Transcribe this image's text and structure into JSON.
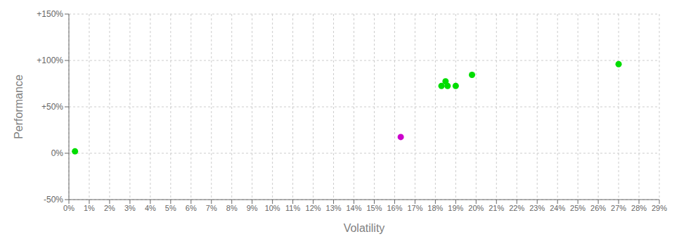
{
  "chart_data": {
    "type": "scatter",
    "x_label": "Volatility",
    "y_label": "Performance",
    "xlim": [
      0,
      0.29
    ],
    "ylim": [
      -0.5,
      1.5
    ],
    "xticks": [
      {
        "value": 0,
        "label": "0%"
      },
      {
        "value": 0.01,
        "label": "1%"
      },
      {
        "value": 0.02,
        "label": "2%"
      },
      {
        "value": 0.03,
        "label": "3%"
      },
      {
        "value": 0.04,
        "label": "4%"
      },
      {
        "value": 0.05,
        "label": "5%"
      },
      {
        "value": 0.06,
        "label": "6%"
      },
      {
        "value": 0.07,
        "label": "7%"
      },
      {
        "value": 0.08,
        "label": "8%"
      },
      {
        "value": 0.09,
        "label": "9%"
      },
      {
        "value": 0.1,
        "label": "10%"
      },
      {
        "value": 0.11,
        "label": "11%"
      },
      {
        "value": 0.12,
        "label": "12%"
      },
      {
        "value": 0.13,
        "label": "13%"
      },
      {
        "value": 0.14,
        "label": "14%"
      },
      {
        "value": 0.15,
        "label": "15%"
      },
      {
        "value": 0.16,
        "label": "16%"
      },
      {
        "value": 0.17,
        "label": "17%"
      },
      {
        "value": 0.18,
        "label": "18%"
      },
      {
        "value": 0.19,
        "label": "19%"
      },
      {
        "value": 0.2,
        "label": "20%"
      },
      {
        "value": 0.21,
        "label": "21%"
      },
      {
        "value": 0.22,
        "label": "22%"
      },
      {
        "value": 0.23,
        "label": "23%"
      },
      {
        "value": 0.24,
        "label": "24%"
      },
      {
        "value": 0.25,
        "label": "25%"
      },
      {
        "value": 0.26,
        "label": "26%"
      },
      {
        "value": 0.27,
        "label": "27%"
      },
      {
        "value": 0.28,
        "label": "28%"
      },
      {
        "value": 0.29,
        "label": "29%"
      }
    ],
    "yticks": [
      {
        "value": -0.5,
        "label": "-50%"
      },
      {
        "value": 0,
        "label": "0%"
      },
      {
        "value": 0.5,
        "label": "+50%"
      },
      {
        "value": 1.0,
        "label": "+100%"
      },
      {
        "value": 1.5,
        "label": "+150%"
      }
    ],
    "grid": true,
    "series": [
      {
        "color": "#00dd00",
        "x": [
          0.003,
          0.183,
          0.186,
          0.19,
          0.185,
          0.198,
          0.27
        ],
        "values": [
          0.02,
          0.725,
          0.725,
          0.725,
          0.775,
          0.845,
          0.96
        ]
      },
      {
        "color": "#cc00cc",
        "x": [
          0.163
        ],
        "values": [
          0.175
        ]
      }
    ]
  }
}
